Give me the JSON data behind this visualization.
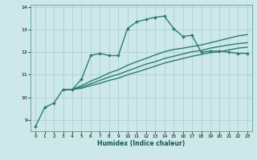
{
  "title": "",
  "xlabel": "Humidex (Indice chaleur)",
  "background_color": "#cce8e8",
  "grid_color": "#aacccc",
  "line_color": "#2d7d6e",
  "xlim": [
    -0.5,
    23.5
  ],
  "ylim": [
    8.5,
    14.1
  ],
  "yticks": [
    9,
    10,
    11,
    12,
    13,
    14
  ],
  "xticks": [
    0,
    1,
    2,
    3,
    4,
    5,
    6,
    7,
    8,
    9,
    10,
    11,
    12,
    13,
    14,
    15,
    16,
    17,
    18,
    19,
    20,
    21,
    22,
    23
  ],
  "series": [
    {
      "x": [
        0,
        1,
        2,
        3,
        4,
        5,
        6,
        7,
        8,
        9,
        10,
        11,
        12,
        13,
        14,
        15,
        16,
        17,
        18,
        19,
        20,
        21,
        22,
        23
      ],
      "y": [
        8.7,
        9.55,
        9.75,
        10.35,
        10.35,
        10.8,
        11.85,
        11.95,
        11.85,
        11.85,
        13.05,
        13.35,
        13.45,
        13.55,
        13.6,
        13.05,
        12.7,
        12.75,
        12.0,
        12.05,
        12.05,
        12.0,
        11.95,
        11.95
      ],
      "marker": "D",
      "markersize": 2.0,
      "linewidth": 1.0
    },
    {
      "x": [
        3,
        4,
        5,
        6,
        7,
        8,
        9,
        10,
        11,
        12,
        13,
        14,
        15,
        16,
        17,
        18,
        19,
        20,
        21,
        22,
        23
      ],
      "y": [
        10.35,
        10.35,
        10.52,
        10.72,
        10.88,
        11.08,
        11.22,
        11.42,
        11.58,
        11.72,
        11.88,
        12.02,
        12.12,
        12.18,
        12.25,
        12.32,
        12.42,
        12.52,
        12.62,
        12.72,
        12.78
      ],
      "marker": null,
      "markersize": 0,
      "linewidth": 1.0
    },
    {
      "x": [
        3,
        4,
        5,
        6,
        7,
        8,
        9,
        10,
        11,
        12,
        13,
        14,
        15,
        16,
        17,
        18,
        19,
        20,
        21,
        22,
        23
      ],
      "y": [
        10.35,
        10.35,
        10.45,
        10.6,
        10.75,
        10.9,
        11.02,
        11.17,
        11.32,
        11.47,
        11.58,
        11.72,
        11.82,
        11.92,
        12.02,
        12.08,
        12.18,
        12.25,
        12.32,
        12.38,
        12.42
      ],
      "marker": null,
      "markersize": 0,
      "linewidth": 1.0
    },
    {
      "x": [
        3,
        4,
        5,
        6,
        7,
        8,
        9,
        10,
        11,
        12,
        13,
        14,
        15,
        16,
        17,
        18,
        19,
        20,
        21,
        22,
        23
      ],
      "y": [
        10.35,
        10.35,
        10.4,
        10.52,
        10.62,
        10.75,
        10.85,
        11.0,
        11.12,
        11.25,
        11.38,
        11.52,
        11.62,
        11.72,
        11.82,
        11.9,
        11.98,
        12.02,
        12.1,
        12.18,
        12.22
      ],
      "marker": null,
      "markersize": 0,
      "linewidth": 1.0
    }
  ]
}
